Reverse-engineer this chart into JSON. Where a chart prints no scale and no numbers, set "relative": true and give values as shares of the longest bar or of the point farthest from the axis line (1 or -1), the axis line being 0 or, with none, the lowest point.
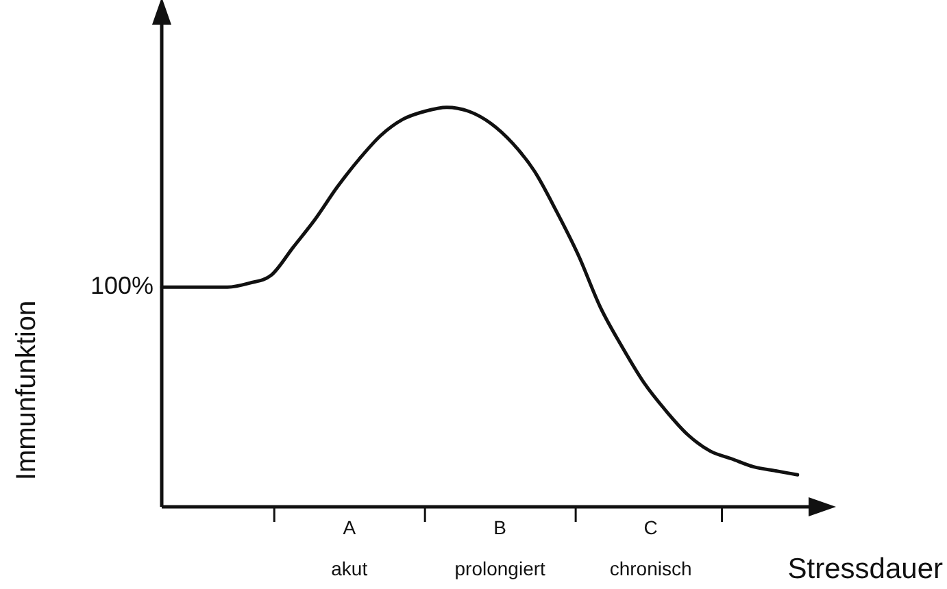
{
  "chart_data": {
    "type": "line",
    "relative": true,
    "xlabel": "Stressdauer",
    "ylabel": "Immunfunktion",
    "color": "#111111",
    "marker": "none",
    "legend": false,
    "categories": [
      null,
      null,
      null,
      null,
      null,
      null,
      null,
      null,
      null,
      null,
      null,
      null,
      null,
      null,
      null,
      null,
      null,
      null,
      null,
      null,
      null,
      null,
      null,
      null,
      null,
      null,
      null,
      null,
      null,
      null
    ],
    "values": [
      0.55,
      0.55,
      0.55,
      0.55,
      0.56,
      0.58,
      0.65,
      0.72,
      0.8,
      0.87,
      0.93,
      0.97,
      0.99,
      1,
      0.99,
      0.96,
      0.91,
      0.84,
      0.74,
      0.63,
      0.5,
      0.4,
      0.31,
      0.24,
      0.18,
      0.14,
      0.12,
      0.1,
      0.09,
      0.08
    ],
    "annotations": [
      "100%",
      "A",
      "akut",
      "B",
      "prolongiert",
      "C",
      "chronisch"
    ]
  }
}
